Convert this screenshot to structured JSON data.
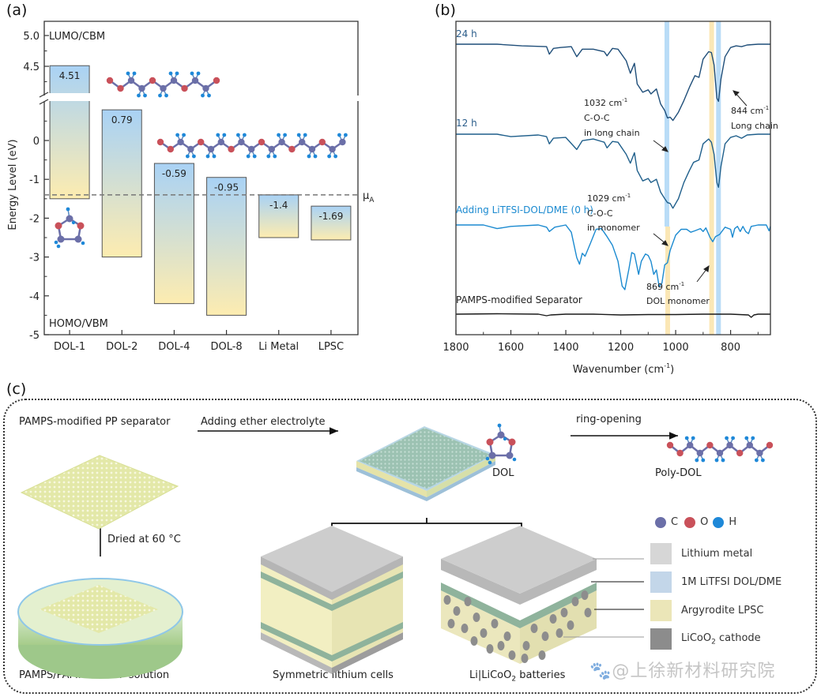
{
  "panels": {
    "a": {
      "label": "(a)"
    },
    "b": {
      "label": "(b)"
    },
    "c": {
      "label": "(c)"
    }
  },
  "chart_data": [
    {
      "id": "a",
      "type": "bar",
      "title": "",
      "xlabel": "",
      "ylabel": "Energy Level (eV)",
      "ylim": [
        -5,
        5.2
      ],
      "axis_break": [
        1.0,
        4.0
      ],
      "yticks": [
        "5.0",
        "4.5",
        "0",
        "-1",
        "-2",
        "-3",
        "-4",
        "-5"
      ],
      "ytick_values": [
        5.0,
        4.5,
        0,
        -1,
        -2,
        -3,
        -4,
        -5
      ],
      "categories": [
        "DOL-1",
        "DOL-2",
        "DOL-4",
        "DOL-8",
        "Li Metal",
        "LPSC"
      ],
      "series": [
        {
          "name": "LUMO/CBM",
          "values": [
            4.51,
            0.79,
            -0.59,
            -0.95,
            -1.4,
            -1.69
          ]
        },
        {
          "name": "HOMO/VBM",
          "values": [
            -1.5,
            -3.0,
            -4.2,
            -4.5,
            -2.5,
            -2.56
          ]
        }
      ],
      "data_labels": [
        "4.51",
        "0.79",
        "-0.59",
        "-0.95",
        "-1.4",
        "-1.69"
      ],
      "annotations": {
        "top_left": "LUMO/CBM",
        "bottom_left": "HOMO/VBM",
        "reference_line": {
          "label": "μ",
          "label_sub": "A",
          "value": -1.4,
          "style": "dashed"
        }
      },
      "gradient_colors": {
        "top": "#a9d2f5",
        "bottom": "#fdecb0"
      },
      "grid": false
    },
    {
      "id": "b",
      "type": "line",
      "title": "",
      "xlabel": "Wavenumber (cm",
      "xlabel_sup": "-1",
      "xlabel_tail": ")",
      "ylabel": "",
      "xlim": [
        1800,
        655
      ],
      "xticks": [
        1800,
        1600,
        1400,
        1200,
        1000,
        800
      ],
      "grid": false,
      "series": [
        {
          "name": "24 h",
          "color": "#1f4e79",
          "points": [
            [
              1800,
              0
            ],
            [
              1650,
              0
            ],
            [
              1560,
              -0.2
            ],
            [
              1470,
              -0.3
            ],
            [
              1460,
              -1.2
            ],
            [
              1445,
              -0.5
            ],
            [
              1420,
              -0.4
            ],
            [
              1380,
              -0.3
            ],
            [
              1360,
              -1.5
            ],
            [
              1340,
              -0.6
            ],
            [
              1300,
              -0.6
            ],
            [
              1260,
              -0.9
            ],
            [
              1250,
              -1.4
            ],
            [
              1230,
              -0.5
            ],
            [
              1210,
              -0.6
            ],
            [
              1180,
              -2.0
            ],
            [
              1165,
              -3.5
            ],
            [
              1150,
              -2.3
            ],
            [
              1140,
              -4.8
            ],
            [
              1120,
              -5.8
            ],
            [
              1100,
              -5.5
            ],
            [
              1090,
              -6.0
            ],
            [
              1070,
              -5.4
            ],
            [
              1055,
              -7.2
            ],
            [
              1040,
              -8.0
            ],
            [
              1030,
              -8.9
            ],
            [
              1020,
              -8.8
            ],
            [
              1010,
              -9.2
            ],
            [
              990,
              -8.2
            ],
            [
              970,
              -6.8
            ],
            [
              950,
              -5.2
            ],
            [
              930,
              -3.8
            ],
            [
              915,
              -4.0
            ],
            [
              900,
              -1.8
            ],
            [
              880,
              -0.9
            ],
            [
              870,
              -1.0
            ],
            [
              860,
              -2.5
            ],
            [
              850,
              -6.5
            ],
            [
              844,
              -6.9
            ],
            [
              835,
              -4.2
            ],
            [
              820,
              -1.5
            ],
            [
              800,
              -0.4
            ],
            [
              780,
              -0.2
            ],
            [
              760,
              -0.3
            ],
            [
              740,
              -0.1
            ],
            [
              700,
              0
            ],
            [
              655,
              0
            ]
          ]
        },
        {
          "name": "12 h",
          "color": "#1f5f8b",
          "points": [
            [
              1800,
              0
            ],
            [
              1650,
              0
            ],
            [
              1600,
              -0.3
            ],
            [
              1500,
              -0.1
            ],
            [
              1470,
              -0.3
            ],
            [
              1460,
              -1.2
            ],
            [
              1445,
              -0.5
            ],
            [
              1400,
              -0.4
            ],
            [
              1360,
              -1.9
            ],
            [
              1340,
              -0.8
            ],
            [
              1300,
              -0.6
            ],
            [
              1260,
              -1.0
            ],
            [
              1250,
              -1.7
            ],
            [
              1230,
              -0.9
            ],
            [
              1210,
              -1.0
            ],
            [
              1180,
              -2.5
            ],
            [
              1165,
              -3.6
            ],
            [
              1150,
              -2.3
            ],
            [
              1140,
              -4.5
            ],
            [
              1120,
              -5.8
            ],
            [
              1100,
              -5.5
            ],
            [
              1090,
              -6.0
            ],
            [
              1070,
              -5.6
            ],
            [
              1055,
              -7.2
            ],
            [
              1040,
              -8.0
            ],
            [
              1030,
              -8.5
            ],
            [
              1020,
              -8.6
            ],
            [
              1010,
              -9.2
            ],
            [
              990,
              -8.0
            ],
            [
              970,
              -6.0
            ],
            [
              950,
              -4.5
            ],
            [
              935,
              -3.5
            ],
            [
              915,
              -3.2
            ],
            [
              900,
              -1.2
            ],
            [
              880,
              -0.6
            ],
            [
              870,
              -1.0
            ],
            [
              860,
              -2.5
            ],
            [
              850,
              -6.0
            ],
            [
              844,
              -6.6
            ],
            [
              835,
              -4.0
            ],
            [
              820,
              -1.2
            ],
            [
              800,
              -0.4
            ],
            [
              780,
              -0.2
            ],
            [
              760,
              -0.5
            ],
            [
              740,
              -0.1
            ],
            [
              700,
              0
            ],
            [
              655,
              0
            ]
          ]
        },
        {
          "name": "Adding LiTFSI-DOL/DME (0 h)",
          "color": "#1b8ad0",
          "points": [
            [
              1800,
              0
            ],
            [
              1700,
              0
            ],
            [
              1650,
              -0.5
            ],
            [
              1600,
              -0.2
            ],
            [
              1500,
              0
            ],
            [
              1470,
              -0.3
            ],
            [
              1460,
              -0.9
            ],
            [
              1440,
              -0.3
            ],
            [
              1400,
              0
            ],
            [
              1380,
              -1.0
            ],
            [
              1360,
              -4.5
            ],
            [
              1350,
              -5.4
            ],
            [
              1340,
              -3.9
            ],
            [
              1330,
              -4.3
            ],
            [
              1310,
              -2.5
            ],
            [
              1290,
              -0.6
            ],
            [
              1270,
              -0.5
            ],
            [
              1250,
              -1.6
            ],
            [
              1230,
              -2.8
            ],
            [
              1210,
              -5.0
            ],
            [
              1195,
              -8.4
            ],
            [
              1185,
              -8.9
            ],
            [
              1170,
              -6.0
            ],
            [
              1160,
              -3.8
            ],
            [
              1150,
              -4.0
            ],
            [
              1135,
              -6.8
            ],
            [
              1125,
              -5.0
            ],
            [
              1110,
              -4.0
            ],
            [
              1100,
              -4.2
            ],
            [
              1090,
              -5.0
            ],
            [
              1080,
              -6.8
            ],
            [
              1070,
              -6.2
            ],
            [
              1060,
              -8.5
            ],
            [
              1050,
              -8.0
            ],
            [
              1040,
              -5.5
            ],
            [
              1030,
              -5.2
            ],
            [
              1020,
              -3.5
            ],
            [
              1000,
              -1.4
            ],
            [
              980,
              -0.6
            ],
            [
              960,
              -0.6
            ],
            [
              945,
              -1.0
            ],
            [
              930,
              -0.8
            ],
            [
              910,
              -0.5
            ],
            [
              900,
              -0.9
            ],
            [
              890,
              -0.4
            ],
            [
              875,
              -1.7
            ],
            [
              865,
              -2.3
            ],
            [
              855,
              -1.6
            ],
            [
              840,
              -1.3
            ],
            [
              820,
              -0.3
            ],
            [
              800,
              -0.6
            ],
            [
              793,
              -1.7
            ],
            [
              785,
              -0.5
            ],
            [
              775,
              -0.2
            ],
            [
              765,
              -0.9
            ],
            [
              755,
              -0.2
            ],
            [
              745,
              -0.9
            ],
            [
              735,
              -1.2
            ],
            [
              725,
              -0.2
            ],
            [
              700,
              0
            ],
            [
              670,
              0
            ],
            [
              660,
              -0.8
            ],
            [
              655,
              -0.2
            ]
          ]
        },
        {
          "name": "PAMPS-modified Separator",
          "color": "#1a1a1a",
          "points": [
            [
              1800,
              0
            ],
            [
              1650,
              0.1
            ],
            [
              1500,
              0
            ],
            [
              1470,
              -0.4
            ],
            [
              1455,
              -0.2
            ],
            [
              1400,
              0
            ],
            [
              1300,
              0
            ],
            [
              1200,
              -0.2
            ],
            [
              1100,
              -0.1
            ],
            [
              1040,
              -0.1
            ],
            [
              1000,
              -0.1
            ],
            [
              900,
              0
            ],
            [
              800,
              0
            ],
            [
              735,
              -0.2
            ],
            [
              725,
              -0.8
            ],
            [
              715,
              -0.2
            ],
            [
              700,
              0
            ],
            [
              655,
              0
            ]
          ]
        }
      ],
      "highlight_bands": [
        {
          "center": 1032,
          "color": "#b9dcf7",
          "extent": "top"
        },
        {
          "center": 1029,
          "color": "#fbe7b5",
          "extent": "bottom"
        },
        {
          "center": 869,
          "color": "#fbe7b5",
          "extent": "full"
        },
        {
          "center": 844,
          "color": "#b9dcf7",
          "extent": "full"
        }
      ],
      "annotations": [
        {
          "lines": [
            "1032 cm",
            "C-O-C",
            "in long chain"
          ],
          "sup": "-1"
        },
        {
          "lines": [
            "844 cm",
            "Long chain"
          ],
          "sup": "-1"
        },
        {
          "lines": [
            "1029 cm",
            "C-O-C",
            "in monomer"
          ],
          "sup": "-1"
        },
        {
          "lines": [
            "869 cm",
            "DOL monomer"
          ],
          "sup": "-1"
        }
      ]
    }
  ],
  "schematic": {
    "step_labels": {
      "separator": "PAMPS-modified PP separator",
      "adding": "Adding ether electrolyte",
      "dried": "Dried at 60 °C",
      "solution": "PAMPS/PAMPSLi NMP solution",
      "ring_opening": "ring-opening",
      "dol": "DOL",
      "poly_dol": "Poly-DOL",
      "sym_cells": "Symmetric lithium cells",
      "batteries_pre": "Li|LiCoO",
      "batteries_sub": "2",
      "batteries_post": " batteries"
    },
    "atom_legend": [
      {
        "symbol": "C",
        "color": "#6b6fa8"
      },
      {
        "symbol": "O",
        "color": "#c9515a"
      },
      {
        "symbol": "H",
        "color": "#1e88d8"
      }
    ],
    "material_legend": [
      {
        "label": "Lithium metal",
        "color": "#d6d6d6"
      },
      {
        "label": "1M LiTFSI DOL/DME",
        "color": "#c3d6e9"
      },
      {
        "label": "Argyrodite LPSC",
        "color": "#ebe6b8"
      },
      {
        "label_pre": "LiCoO",
        "label_sub": "2",
        "label_post": " cathode",
        "color": "#8c8c8c"
      }
    ],
    "watermark": "🐾@上徐新材料研究院"
  }
}
